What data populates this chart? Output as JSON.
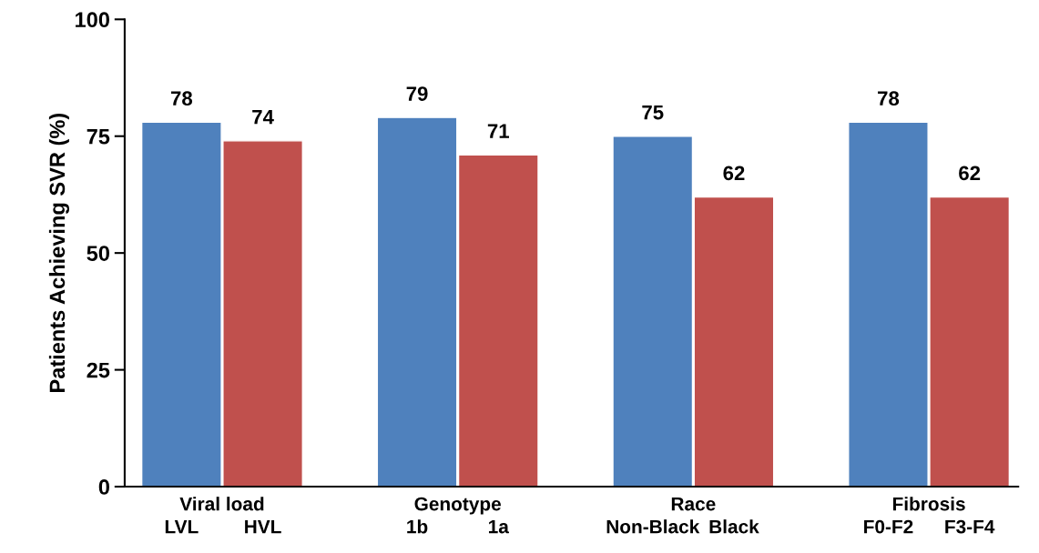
{
  "chart_data": {
    "type": "bar",
    "ylabel": "Patients Achieving SVR (%)",
    "categories": [
      "LVL",
      "HVL",
      "1b",
      "1a",
      "Non-Black",
      "Black",
      "F0-F2",
      "F3-F4"
    ],
    "values": [
      78,
      74,
      79,
      71,
      75,
      62,
      78,
      62
    ],
    "colors": [
      "#4f81bd",
      "#c0504d",
      "#4f81bd",
      "#c0504d",
      "#4f81bd",
      "#c0504d",
      "#4f81bd",
      "#c0504d"
    ],
    "annotations": [
      "Viral load",
      "Genotype",
      "Race",
      "Fibrosis"
    ],
    "ylim": [
      0,
      100
    ],
    "yticks": [
      0,
      25,
      50,
      75,
      100
    ],
    "data_labels": true,
    "grid": false,
    "legend": false
  }
}
